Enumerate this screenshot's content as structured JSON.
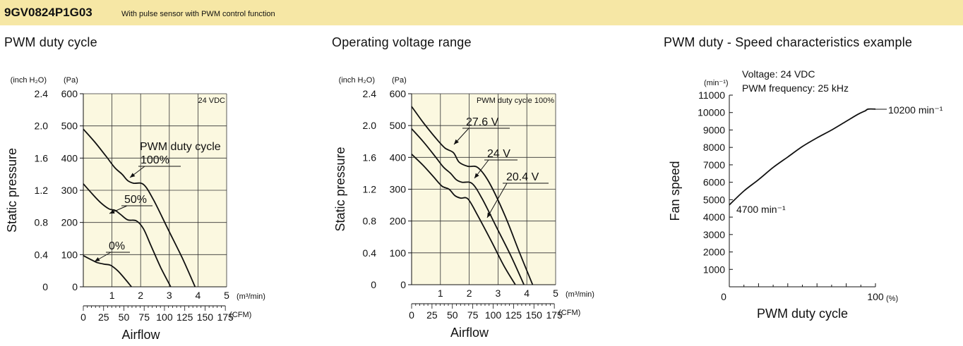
{
  "header": {
    "model": "9GV0824P1G03",
    "description": "With pulse sensor with PWM control function",
    "background_color": "#f6e7a5"
  },
  "panels": {
    "left_title": "PWM duty cycle",
    "middle_title": "Operating voltage range",
    "right_title": "PWM duty - Speed characteristics example"
  },
  "chart_data": [
    {
      "type": "line",
      "name": "PWM duty cycle",
      "condition_label": "24 VDC",
      "legend_title": "PWM duty cycle",
      "ylabel": "Static pressure",
      "xlabel": "Airflow",
      "y_unit_inch": "(inch H₂O)",
      "y_unit_pa": "(Pa)",
      "x_unit_m3": "(m³/min)",
      "x_unit_cfm": "(CFM)",
      "xlim": [
        0,
        5
      ],
      "ylim": [
        0,
        600
      ],
      "x_ticks": [
        "1",
        "2",
        "3",
        "4",
        "5"
      ],
      "y_ticks_pa": [
        "0",
        "100",
        "200",
        "300",
        "400",
        "500",
        "600"
      ],
      "y_ticks_inch": [
        "0",
        "0.4",
        "0.8",
        "1.2",
        "1.6",
        "2.0",
        "2.4"
      ],
      "cfm_ticks": [
        "0",
        "25",
        "50",
        "75",
        "100",
        "125",
        "150",
        "175"
      ],
      "plot_color": "#fbf8e0",
      "series": [
        {
          "name": "100%",
          "x": [
            0,
            0.4,
            0.8,
            1.1,
            1.35,
            1.55,
            1.75,
            2.1,
            2.45,
            2.95,
            3.45,
            3.9
          ],
          "y": [
            490,
            450,
            405,
            370,
            350,
            330,
            322,
            318,
            270,
            180,
            90,
            0
          ]
        },
        {
          "name": "50%",
          "x": [
            0,
            0.3,
            0.6,
            0.9,
            1.1,
            1.3,
            1.55,
            1.85,
            2.1,
            2.35,
            2.7,
            3.05
          ],
          "y": [
            320,
            290,
            262,
            242,
            238,
            225,
            208,
            205,
            180,
            130,
            60,
            0
          ]
        },
        {
          "name": "0%",
          "x": [
            0,
            0.3,
            0.5,
            0.75,
            0.95,
            1.2,
            1.45,
            1.68
          ],
          "y": [
            97,
            83,
            75,
            70,
            67,
            50,
            25,
            0
          ]
        }
      ]
    },
    {
      "type": "line",
      "name": "Operating voltage range",
      "condition_label": "PWM duty cycle 100%",
      "ylabel": "Static pressure",
      "xlabel": "Airflow",
      "y_unit_inch": "(inch H₂O)",
      "y_unit_pa": "(Pa)",
      "x_unit_m3": "(m³/min)",
      "x_unit_cfm": "(CFM)",
      "xlim": [
        0,
        5
      ],
      "ylim": [
        0,
        600
      ],
      "x_ticks": [
        "1",
        "2",
        "3",
        "4",
        "5"
      ],
      "y_ticks_pa": [
        "0",
        "100",
        "200",
        "300",
        "400",
        "500",
        "600"
      ],
      "y_ticks_inch": [
        "0",
        "0.4",
        "0.8",
        "1.2",
        "1.6",
        "2.0",
        "2.4"
      ],
      "cfm_ticks": [
        "0",
        "25",
        "50",
        "75",
        "100",
        "125",
        "150",
        "175"
      ],
      "plot_color": "#fbf8e0",
      "series": [
        {
          "name": "27.6 V",
          "x": [
            0,
            0.4,
            0.8,
            1.15,
            1.45,
            1.65,
            1.95,
            2.3,
            2.7,
            3.25,
            3.75,
            4.2
          ],
          "y": [
            560,
            510,
            465,
            430,
            415,
            385,
            372,
            368,
            320,
            215,
            100,
            0
          ]
        },
        {
          "name": "24 V",
          "x": [
            0,
            0.4,
            0.8,
            1.1,
            1.35,
            1.55,
            1.75,
            2.1,
            2.45,
            2.95,
            3.45,
            3.9
          ],
          "y": [
            490,
            450,
            405,
            370,
            350,
            330,
            322,
            318,
            270,
            180,
            90,
            0
          ]
        },
        {
          "name": "20.4 V",
          "x": [
            0,
            0.4,
            0.75,
            1.05,
            1.3,
            1.5,
            1.7,
            1.95,
            2.25,
            2.75,
            3.2,
            3.6
          ],
          "y": [
            410,
            375,
            340,
            310,
            300,
            280,
            272,
            270,
            225,
            140,
            60,
            0
          ]
        }
      ]
    },
    {
      "type": "line",
      "name": "PWM duty - Speed characteristics example",
      "voltage_label": "Voltage: 24 VDC",
      "frequency_label": "PWM frequency: 25 kHz",
      "ylabel": "Fan speed",
      "xlabel": "PWM duty cycle",
      "y_unit": "(min⁻¹)",
      "x_unit": "(%)",
      "xlim": [
        0,
        100
      ],
      "ylim": [
        0,
        11000
      ],
      "x_ticks": [
        "0",
        "100"
      ],
      "y_ticks": [
        "1000",
        "2000",
        "3000",
        "4000",
        "5000",
        "6000",
        "7000",
        "8000",
        "9000",
        "10000",
        "11000"
      ],
      "start_label": "4700 min⁻¹",
      "end_label": "10200 min⁻¹",
      "series": [
        {
          "name": "",
          "x": [
            0,
            10,
            20,
            30,
            40,
            50,
            60,
            70,
            80,
            88,
            93,
            95,
            100
          ],
          "y": [
            4700,
            5500,
            6150,
            6850,
            7450,
            8050,
            8550,
            9000,
            9500,
            9900,
            10100,
            10200,
            10200
          ]
        }
      ]
    }
  ]
}
